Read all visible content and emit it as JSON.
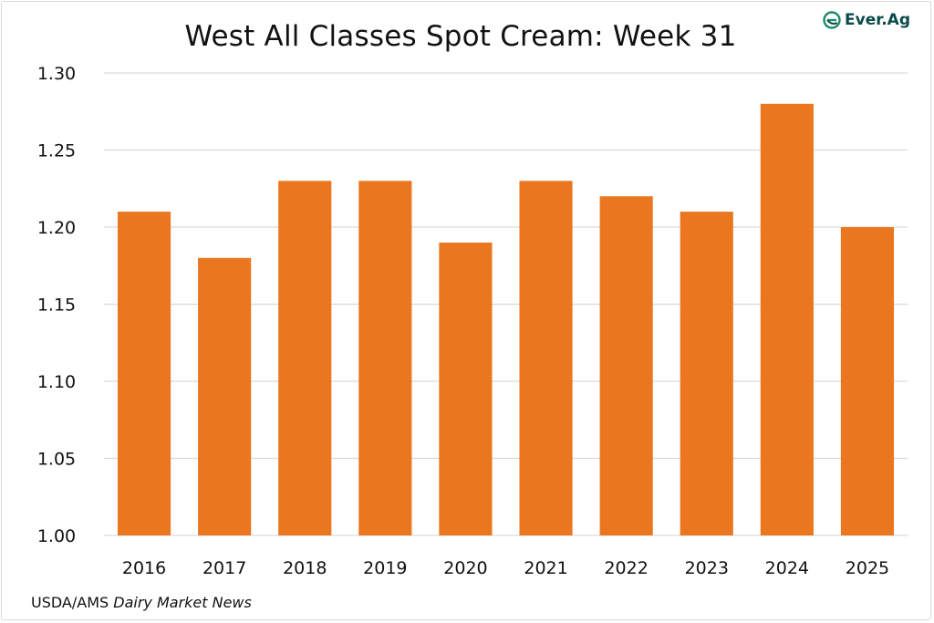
{
  "brand": {
    "name": "Ever.Ag",
    "icon": "everag-logo-icon",
    "color": "#1f8a6b"
  },
  "source": {
    "prefix": "USDA/AMS",
    "italic": "Dairy Market News"
  },
  "chart_data": {
    "type": "bar",
    "title": "West All Classes Spot Cream: Week 31",
    "xlabel": "",
    "ylabel": "",
    "categories": [
      "2016",
      "2017",
      "2018",
      "2019",
      "2020",
      "2021",
      "2022",
      "2023",
      "2024",
      "2025"
    ],
    "values": [
      1.21,
      1.18,
      1.23,
      1.23,
      1.19,
      1.23,
      1.22,
      1.21,
      1.28,
      1.2
    ],
    "ylim": [
      1.0,
      1.3
    ],
    "yticks": [
      "1.00",
      "1.05",
      "1.10",
      "1.15",
      "1.20",
      "1.25",
      "1.30"
    ],
    "grid": true,
    "legend": "none",
    "bar_color": "#ea761f",
    "grid_color": "#d9d9d9"
  }
}
